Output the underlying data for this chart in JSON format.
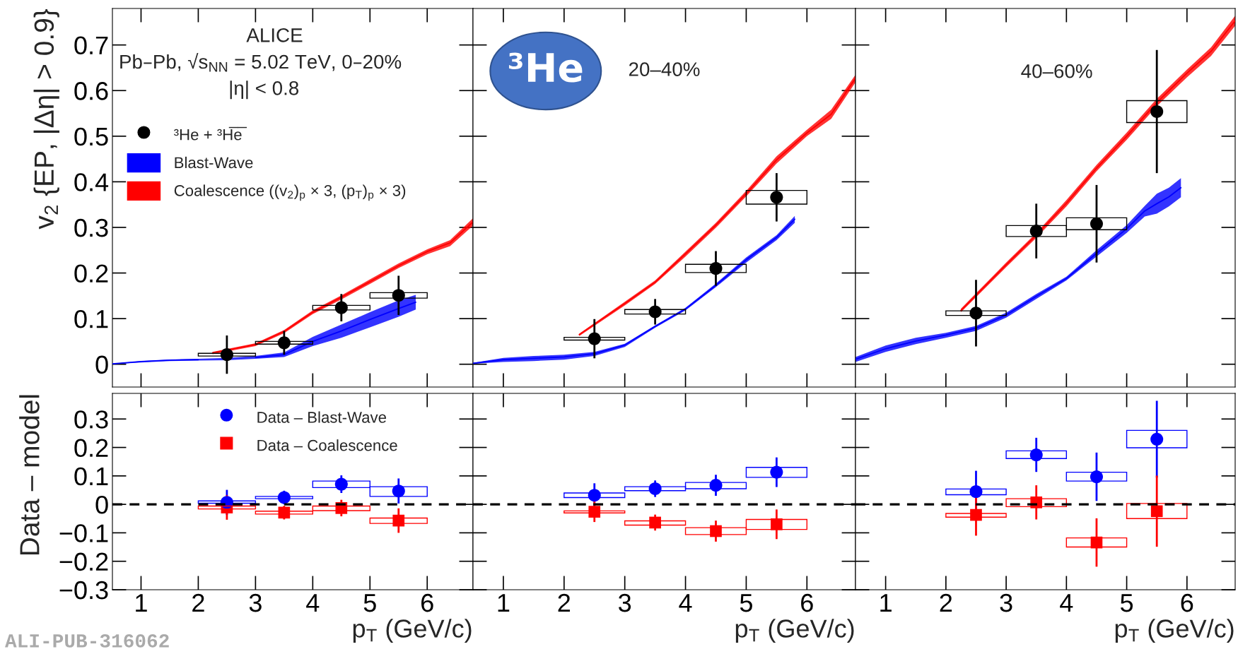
{
  "chart_data": [
    {
      "type": "scatter",
      "ylabel": "v$_{2}$ {EP, |Δη| > 0.9}",
      "xlim": [
        0.5,
        6.8
      ],
      "ylim": [
        -0.05,
        0.78
      ],
      "xticks": [
        1,
        2,
        3,
        4,
        5,
        6
      ],
      "yticks": [
        0,
        0.1,
        0.2,
        0.3,
        0.4,
        0.5,
        0.6,
        0.7
      ],
      "tick_labels": "y",
      "legend": "top left",
      "annotations": [
        "ALICE",
        "Pb–Pb, √s$_{NN}$ = 5.02 TeV, 0–20%",
        "|η| < 0.8"
      ],
      "series": [
        {
          "name": "³He + ³H̅e̅",
          "color": "#000000",
          "marker": "circle",
          "x": [
            2.5,
            3.5,
            4.5,
            5.5
          ],
          "values": [
            0.021,
            0.047,
            0.124,
            0.151
          ],
          "errors": [
            0.042,
            0.026,
            0.03,
            0.043
          ]
        },
        {
          "type": "line",
          "name": "Blast-Wave",
          "color": "#0000ff",
          "x": [
            0.5,
            1,
            1.5,
            2,
            2.5,
            3,
            3.5,
            4,
            4.5,
            5,
            5.5,
            5.8
          ],
          "values": [
            0.001,
            0.006,
            0.009,
            0.01,
            null,
            0.015,
            0.021,
            0.05,
            0.073,
            0.098,
            0.122,
            0.136
          ],
          "lower": [
            0,
            0.004,
            0.007,
            0.008,
            0.009,
            0.012,
            0.016,
            0.04,
            0.058,
            0.081,
            0.104,
            0.12
          ],
          "upper": [
            0.001,
            0.007,
            0.01,
            0.012,
            0.014,
            0.018,
            0.026,
            0.06,
            0.087,
            0.114,
            0.14,
            0.152
          ]
        },
        {
          "type": "line",
          "name": "Coalescence ((v$_{2}$)$_{p}$ × 3, (p$_{T}$)$_{p}$ × 3)",
          "color": "#ff0000",
          "x": [
            2.25,
            3,
            3.5,
            4,
            4.5,
            5,
            5.5,
            6,
            6.4,
            6.8
          ],
          "values": [
            0.025,
            0.043,
            0.072,
            0.114,
            0.147,
            0.181,
            0.216,
            0.247,
            0.266,
            0.312
          ],
          "lower": [
            0.022,
            0.04,
            0.068,
            0.11,
            0.142,
            0.176,
            0.211,
            0.241,
            0.259,
            0.304
          ],
          "upper": [
            0.027,
            0.046,
            0.075,
            0.118,
            0.151,
            0.186,
            0.221,
            0.252,
            0.272,
            0.32
          ]
        },
        {
          "type": "bar",
          "color": "#000000",
          "x": [
            2.5,
            3.5,
            4.5,
            5.5
          ],
          "base": [
            0.018,
            0.044,
            0.119,
            0.145
          ],
          "values": [
            0.006,
            0.006,
            0.01,
            0.012
          ]
        }
      ]
    },
    {
      "type": "scatter",
      "xlim": [
        0.5,
        6.8
      ],
      "ylim": [
        -0.05,
        0.78
      ],
      "xticks": [
        1,
        2,
        3,
        4,
        5,
        6
      ],
      "yticks": [
        0,
        0.1,
        0.2,
        0.3,
        0.4,
        0.5,
        0.6,
        0.7
      ],
      "tick_labels": false,
      "annotations": [
        "³He",
        "20–40%"
      ],
      "series": [
        {
          "type": "line",
          "color": "#0000ff",
          "x": [
            0.5,
            1,
            1.5,
            2,
            2.5,
            3,
            3.5,
            4,
            4.5,
            5,
            5.5,
            5.8
          ],
          "values": [
            0.002,
            0.01,
            0.013,
            0.016,
            0.023,
            0.042,
            0.083,
            0.121,
            0.173,
            0.229,
            0.278,
            0.318
          ],
          "lower": [
            0.001,
            0.005,
            0.007,
            0.01,
            0.018,
            0.038,
            0.08,
            0.118,
            0.169,
            0.223,
            0.272,
            0.31
          ],
          "upper": [
            0.003,
            0.014,
            0.018,
            0.021,
            0.027,
            0.045,
            0.085,
            0.124,
            0.177,
            0.234,
            0.283,
            0.325
          ]
        },
        {
          "type": "line",
          "color": "#ff0000",
          "x": [
            2.25,
            3,
            3.5,
            4,
            4.5,
            5,
            5.5,
            6,
            6.4,
            6.8
          ],
          "values": [
            0.065,
            0.133,
            0.18,
            0.242,
            0.305,
            0.374,
            0.448,
            0.507,
            0.548,
            0.627
          ],
          "lower": [
            0.062,
            0.129,
            0.176,
            0.236,
            0.299,
            0.368,
            0.44,
            0.5,
            0.538,
            0.618
          ],
          "upper": [
            0.067,
            0.137,
            0.184,
            0.247,
            0.31,
            0.38,
            0.456,
            0.514,
            0.558,
            0.635
          ]
        },
        {
          "type": "bar",
          "color": "#000000",
          "x": [
            2.5,
            3.5,
            4.5,
            5.5
          ],
          "base": [
            0.053,
            0.11,
            0.201,
            0.351
          ],
          "values": [
            0.006,
            0.01,
            0.018,
            0.03
          ]
        },
        {
          "color": "#000000",
          "marker": "circle",
          "x": [
            2.5,
            3.5,
            4.5,
            5.5
          ],
          "values": [
            0.056,
            0.115,
            0.21,
            0.366
          ],
          "errors": [
            0.043,
            0.028,
            0.038,
            0.053
          ]
        }
      ]
    },
    {
      "type": "scatter",
      "xlim": [
        0.5,
        6.8
      ],
      "ylim": [
        -0.05,
        0.78
      ],
      "xticks": [
        1,
        2,
        3,
        4,
        5,
        6
      ],
      "yticks": [
        0,
        0.1,
        0.2,
        0.3,
        0.4,
        0.5,
        0.6,
        0.7
      ],
      "tick_labels": false,
      "annotations": [
        "40–60%"
      ],
      "series": [
        {
          "type": "line",
          "color": "#0000ff",
          "x": [
            0.5,
            1,
            1.5,
            2,
            2.5,
            3,
            3.5,
            4,
            4.5,
            5,
            5.3,
            5.5,
            5.7,
            5.9
          ],
          "values": [
            0.011,
            0.034,
            0.051,
            0.064,
            0.079,
            0.108,
            0.149,
            0.188,
            0.243,
            0.297,
            0.336,
            0.352,
            0.367,
            0.387
          ],
          "lower": [
            0.005,
            0.027,
            0.044,
            0.058,
            0.073,
            0.102,
            0.143,
            0.184,
            0.236,
            0.288,
            0.324,
            0.33,
            0.346,
            0.366
          ],
          "upper": [
            0.016,
            0.041,
            0.058,
            0.069,
            0.084,
            0.113,
            0.154,
            0.192,
            0.25,
            0.305,
            0.347,
            0.374,
            0.387,
            0.408
          ]
        },
        {
          "type": "line",
          "color": "#ff0000",
          "x": [
            2.25,
            3,
            3.5,
            4,
            4.5,
            5,
            5.5,
            6,
            6.4,
            6.8
          ],
          "values": [
            0.118,
            0.218,
            0.283,
            0.353,
            0.43,
            0.5,
            0.574,
            0.638,
            0.686,
            0.753
          ],
          "lower": [
            0.114,
            0.213,
            0.277,
            0.346,
            0.423,
            0.492,
            0.566,
            0.629,
            0.676,
            0.742
          ],
          "upper": [
            0.122,
            0.223,
            0.288,
            0.36,
            0.437,
            0.508,
            0.582,
            0.646,
            0.695,
            0.764
          ]
        },
        {
          "type": "bar",
          "color": "#000000",
          "x": [
            2.5,
            3.5,
            4.5,
            5.5
          ],
          "base": [
            0.107,
            0.28,
            0.295,
            0.53
          ],
          "values": [
            0.01,
            0.024,
            0.026,
            0.048
          ]
        },
        {
          "color": "#000000",
          "marker": "circle",
          "x": [
            2.5,
            3.5,
            4.5,
            5.5
          ],
          "values": [
            0.112,
            0.292,
            0.308,
            0.554
          ],
          "errors": [
            0.073,
            0.06,
            0.085,
            0.135
          ]
        }
      ]
    },
    {
      "type": "scatter",
      "xlabel": "p$_{T}$ (GeV/c)",
      "ylabel": "Data – model",
      "xlim": [
        0.5,
        6.8
      ],
      "ylim": [
        -0.3,
        0.39
      ],
      "xticks": [
        1,
        2,
        3,
        4,
        5,
        6
      ],
      "yticks": [
        {
          "value": -0.3,
          "label": "−0.3"
        },
        {
          "value": -0.2,
          "label": "−0.2"
        },
        {
          "value": -0.1,
          "label": "−0.1"
        },
        0,
        0.1,
        0.2,
        0.3
      ],
      "legend": "top",
      "annotations": [
        "ALI-PUB-316062"
      ],
      "ref_lines": [
        {
          "axis": "y",
          "value": 0,
          "color": "#000000",
          "line_style": "dashed"
        }
      ],
      "series": [
        {
          "type": "bar",
          "color": "#0000ff",
          "x": [
            2.5,
            3.5,
            4.5,
            5.5
          ],
          "base": [
            0.004,
            0.02,
            0.059,
            0.028
          ],
          "values": [
            0.008,
            0.008,
            0.023,
            0.034
          ]
        },
        {
          "type": "bar",
          "color": "#ff0000",
          "x": [
            2.5,
            3.5,
            4.5,
            5.5
          ],
          "base": [
            -0.016,
            -0.034,
            -0.022,
            -0.067
          ],
          "values": [
            0.01,
            0.01,
            0.016,
            0.019
          ]
        },
        {
          "name": "Data – Blast-Wave",
          "color": "#0000ff",
          "marker": "circle",
          "x": [
            2.5,
            3.5,
            4.5,
            5.5
          ],
          "values": [
            0.007,
            0.024,
            0.071,
            0.047
          ],
          "errors": [
            0.044,
            0.024,
            0.031,
            0.044
          ]
        },
        {
          "name": "Data – Coalescence",
          "color": "#ff0000",
          "marker": "square",
          "x": [
            2.5,
            3.5,
            4.5,
            5.5
          ],
          "values": [
            -0.011,
            -0.029,
            -0.013,
            -0.057
          ],
          "errors": [
            0.043,
            0.024,
            0.029,
            0.043
          ]
        }
      ]
    },
    {
      "type": "scatter",
      "xlabel": "p$_{T}$ (GeV/c)",
      "xlim": [
        0.5,
        6.8
      ],
      "ylim": [
        -0.3,
        0.39
      ],
      "xticks": [
        1,
        2,
        3,
        4,
        5,
        6
      ],
      "yticks": [
        -0.3,
        -0.2,
        -0.1,
        0,
        0.1,
        0.2,
        0.3
      ],
      "tick_labels": "x",
      "ref_lines": [
        {
          "axis": "y",
          "value": 0,
          "color": "#000000",
          "line_style": "dashed"
        }
      ],
      "series": [
        {
          "type": "bar",
          "color": "#0000ff",
          "x": [
            2.5,
            3.5,
            4.5,
            5.5
          ],
          "base": [
            0.024,
            0.048,
            0.055,
            0.095
          ],
          "values": [
            0.016,
            0.014,
            0.022,
            0.035
          ]
        },
        {
          "type": "bar",
          "color": "#ff0000",
          "x": [
            2.5,
            3.5,
            4.5,
            5.5
          ],
          "base": [
            -0.03,
            -0.073,
            -0.106,
            -0.088
          ],
          "values": [
            0.007,
            0.015,
            0.024,
            0.035
          ]
        },
        {
          "color": "#0000ff",
          "marker": "circle",
          "x": [
            2.5,
            3.5,
            4.5,
            5.5
          ],
          "values": [
            0.032,
            0.055,
            0.067,
            0.113
          ],
          "errors": [
            0.042,
            0.029,
            0.037,
            0.052
          ]
        },
        {
          "color": "#ff0000",
          "marker": "square",
          "x": [
            2.5,
            3.5,
            4.5,
            5.5
          ],
          "values": [
            -0.026,
            -0.064,
            -0.094,
            -0.07
          ],
          "errors": [
            0.036,
            0.028,
            0.037,
            0.052
          ]
        }
      ]
    },
    {
      "type": "scatter",
      "xlabel": "p$_{T}$ (GeV/c)",
      "xlim": [
        0.5,
        6.8
      ],
      "ylim": [
        -0.3,
        0.39
      ],
      "xticks": [
        1,
        2,
        3,
        4,
        5,
        6
      ],
      "yticks": [
        -0.3,
        -0.2,
        -0.1,
        0,
        0.1,
        0.2,
        0.3
      ],
      "tick_labels": "x",
      "ref_lines": [
        {
          "axis": "y",
          "value": 0,
          "color": "#000000",
          "line_style": "dashed"
        }
      ],
      "series": [
        {
          "type": "bar",
          "color": "#0000ff",
          "x": [
            2.5,
            3.5,
            4.5,
            5.5
          ],
          "base": [
            0.034,
            0.161,
            0.082,
            0.199
          ],
          "values": [
            0.02,
            0.027,
            0.031,
            0.061
          ]
        },
        {
          "type": "bar",
          "color": "#ff0000",
          "x": [
            2.5,
            3.5,
            4.5,
            5.5
          ],
          "base": [
            -0.045,
            -0.008,
            -0.15,
            -0.05
          ],
          "values": [
            0.013,
            0.028,
            0.032,
            0.053
          ]
        },
        {
          "color": "#0000ff",
          "marker": "circle",
          "x": [
            2.5,
            3.5,
            4.5,
            5.5
          ],
          "values": [
            0.045,
            0.174,
            0.097,
            0.229
          ],
          "errors": [
            0.073,
            0.06,
            0.085,
            0.135
          ]
        },
        {
          "color": "#ff0000",
          "marker": "square",
          "x": [
            2.5,
            3.5,
            4.5,
            5.5
          ],
          "values": [
            -0.037,
            0.007,
            -0.134,
            -0.024
          ],
          "errors": [
            0.073,
            0.06,
            0.085,
            0.125
          ]
        }
      ]
    }
  ]
}
